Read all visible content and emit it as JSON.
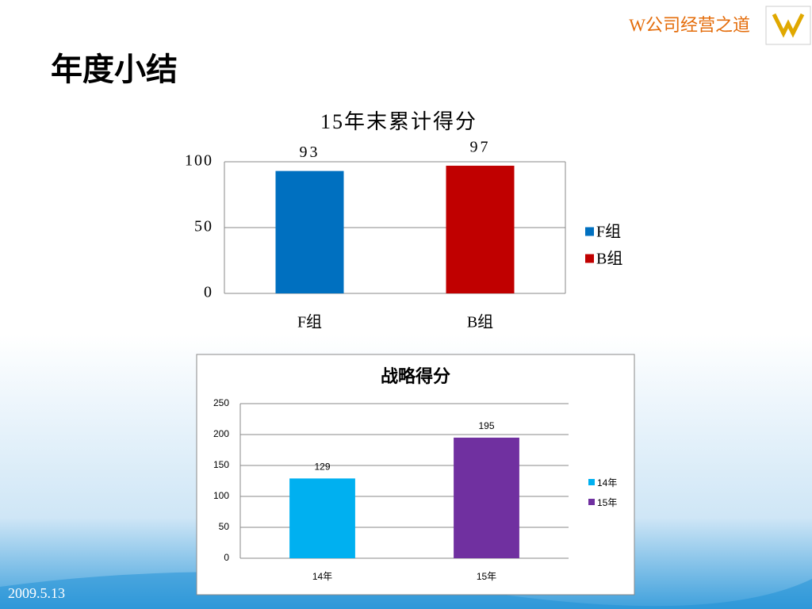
{
  "header": {
    "brand": "W公司经营之道",
    "title": "年度小结",
    "date": "2009.5.13"
  },
  "chart_data": [
    {
      "type": "bar",
      "title": "15年末累计得分",
      "categories": [
        "F组",
        "B组"
      ],
      "values": [
        93,
        97
      ],
      "colors": [
        "#0070c0",
        "#c00000"
      ],
      "ylim": [
        0,
        100
      ],
      "yticks": [
        0,
        50,
        100
      ],
      "grid": true,
      "legend": "right"
    },
    {
      "type": "bar",
      "title": "战略得分",
      "categories": [
        "14年",
        "15年"
      ],
      "values": [
        129,
        195
      ],
      "colors": [
        "#00b0f0",
        "#7030a0"
      ],
      "ylim": [
        0,
        250
      ],
      "yticks": [
        0,
        50,
        100,
        150,
        200,
        250
      ],
      "grid": true,
      "legend": "right"
    }
  ]
}
